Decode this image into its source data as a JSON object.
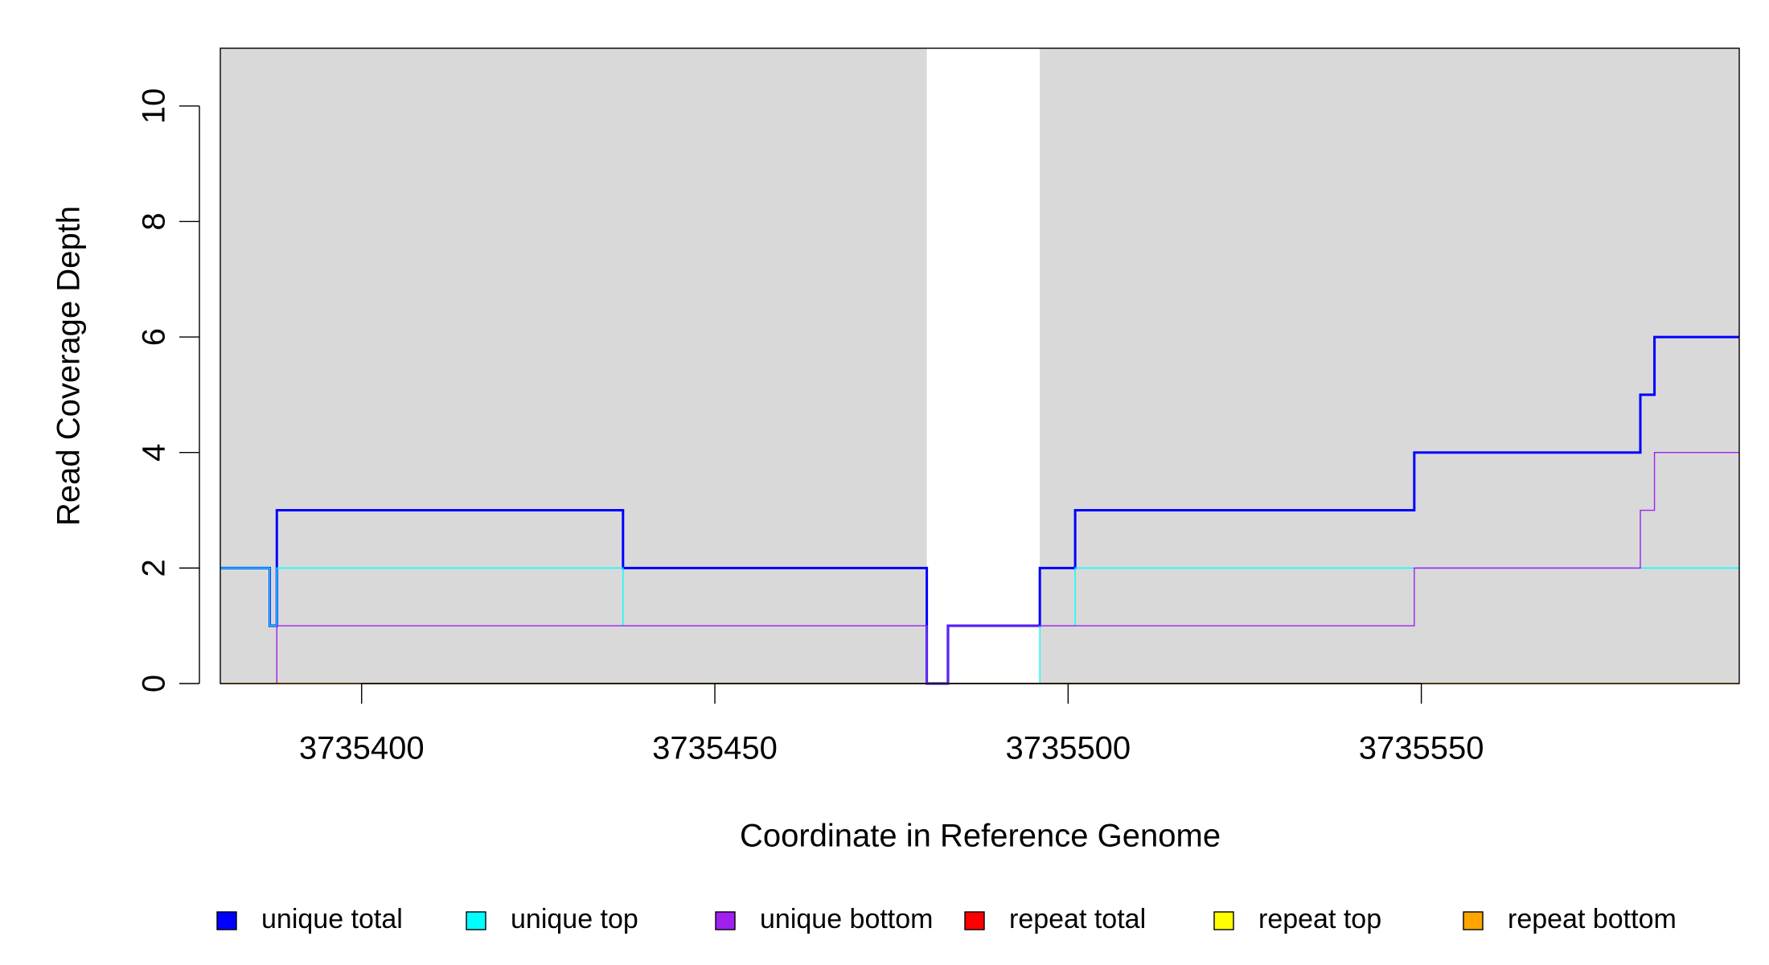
{
  "chart_data": {
    "type": "step",
    "x_label": "Coordinate in Reference Genome",
    "y_label": "Read Coverage Depth",
    "x": [
      3735380,
      3735387,
      3735388,
      3735437,
      3735480,
      3735483,
      3735496,
      3735501,
      3735549,
      3735581,
      3735583,
      3735595
    ],
    "series": [
      {
        "name": "unique total",
        "color": "#0000ff",
        "values": [
          2,
          1,
          3,
          2,
          0,
          1,
          2,
          3,
          4,
          5,
          6,
          6
        ]
      },
      {
        "name": "unique top",
        "color": "#00ffff",
        "values": [
          2,
          1,
          2,
          1,
          0,
          0,
          1,
          2,
          2,
          2,
          2,
          2
        ]
      },
      {
        "name": "unique bottom",
        "color": "#a020f0",
        "values": [
          0,
          0,
          1,
          1,
          0,
          1,
          1,
          1,
          2,
          3,
          4,
          4
        ]
      },
      {
        "name": "repeat total",
        "color": "#ff0000",
        "values": [
          0,
          0,
          0,
          0,
          0,
          0,
          0,
          0,
          0,
          0,
          0,
          0
        ]
      },
      {
        "name": "repeat top",
        "color": "#ffff00",
        "values": [
          0,
          0,
          0,
          0,
          0,
          0,
          0,
          0,
          0,
          0,
          0,
          0
        ]
      },
      {
        "name": "repeat bottom",
        "color": "#ffa500",
        "values": [
          0,
          0,
          0,
          0,
          0,
          0,
          0,
          0,
          0,
          0,
          0,
          0
        ]
      }
    ],
    "shaded_regions": [
      [
        3735380,
        3735480
      ],
      [
        3735496,
        3735595
      ]
    ],
    "shade_color": "#d9d9d9",
    "xlim": [
      3735380,
      3735595
    ],
    "xticks": [
      3735400,
      3735450,
      3735500,
      3735550
    ],
    "ylim": [
      0,
      11
    ],
    "yticks": [
      0,
      2,
      4,
      6,
      8,
      10
    ],
    "legend": "bottom"
  }
}
